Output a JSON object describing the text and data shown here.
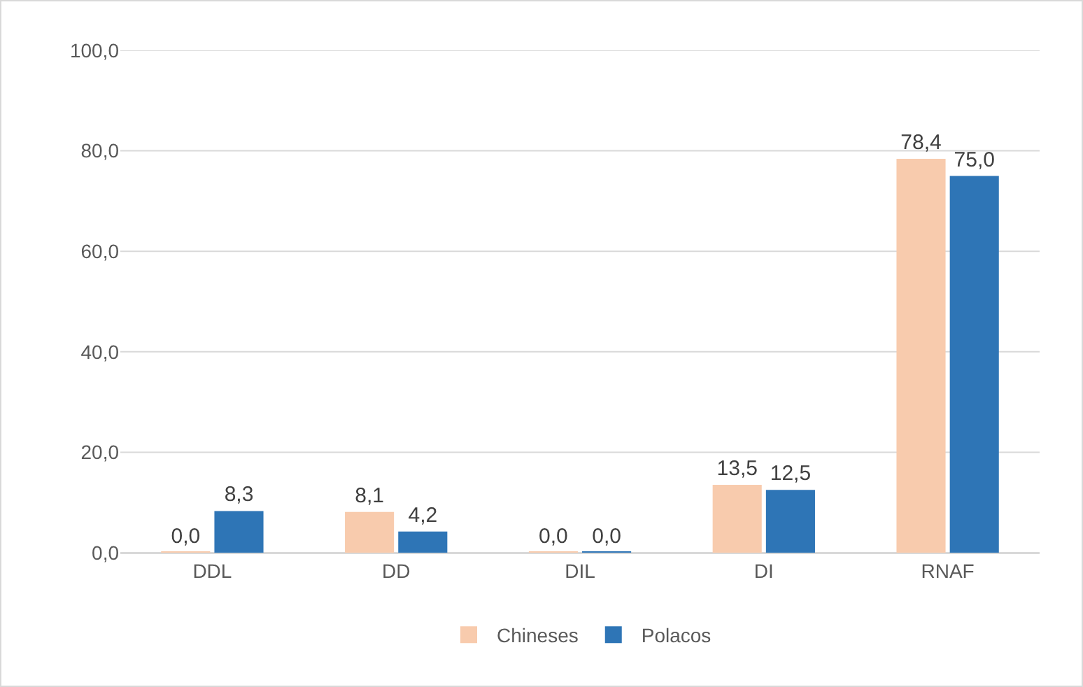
{
  "chart_data": {
    "type": "bar",
    "categories": [
      "DDL",
      "DD",
      "DIL",
      "DI",
      "RNAF"
    ],
    "series": [
      {
        "name": "Chineses",
        "color": "#f8cbad",
        "values": [
          0.0,
          8.1,
          0.0,
          13.5,
          78.4
        ],
        "value_labels": [
          "0,0",
          "8,1",
          "0,0",
          "13,5",
          "78,4"
        ]
      },
      {
        "name": "Polacos",
        "color": "#2e75b6",
        "values": [
          8.3,
          4.2,
          0.0,
          12.5,
          75.0
        ],
        "value_labels": [
          "8,3",
          "4,2",
          "0,0",
          "12,5",
          "75,0"
        ]
      }
    ],
    "ylim": [
      0,
      100
    ],
    "yticks": [
      {
        "value": 0,
        "label": "0,0"
      },
      {
        "value": 20,
        "label": "20,0"
      },
      {
        "value": 40,
        "label": "40,0"
      },
      {
        "value": 60,
        "label": "60,0"
      },
      {
        "value": 80,
        "label": "80,0"
      },
      {
        "value": 100,
        "label": "100,0"
      }
    ],
    "grid": "y",
    "legend": "bottom"
  }
}
